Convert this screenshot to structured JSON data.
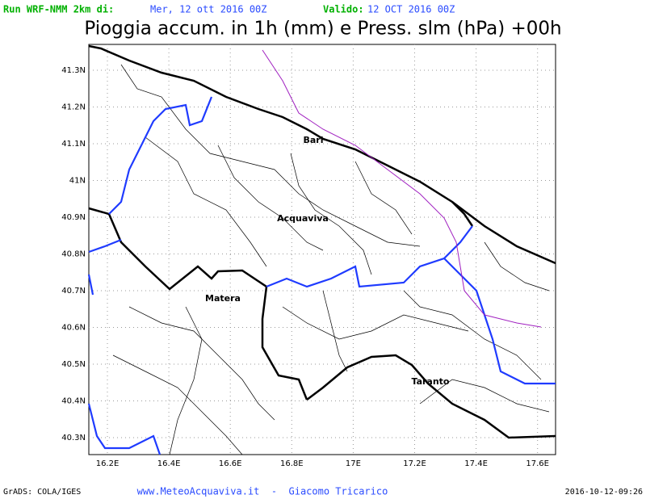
{
  "header": {
    "run_label": "Run WRF-NMM 2km di:",
    "run_date": "Mer, 12 ott 2016 00Z",
    "valid_label": "Valido:",
    "valid_date": "12 OCT 2016 00Z",
    "title": "Pioggia accum. in 1h (mm) e Press. slm (hPa) +00h"
  },
  "map": {
    "lon_labels": [
      "16.2E",
      "16.4E",
      "16.6E",
      "16.8E",
      "17E",
      "17.2E",
      "17.4E",
      "17.6E"
    ],
    "lat_labels": [
      "41.3N",
      "41.2N",
      "41.1N",
      "41N",
      "40.9N",
      "40.8N",
      "40.7N",
      "40.6N",
      "40.5N",
      "40.4N",
      "40.3N"
    ],
    "places": [
      "Bari",
      "Acquaviva",
      "Matera",
      "Taranto"
    ]
  },
  "footer": {
    "left": "GrADS: COLA/IGES",
    "center": "www.MeteoAcquaviva.it  -  Giacomo Tricarico",
    "right": "2016-10-12-09:26"
  }
}
